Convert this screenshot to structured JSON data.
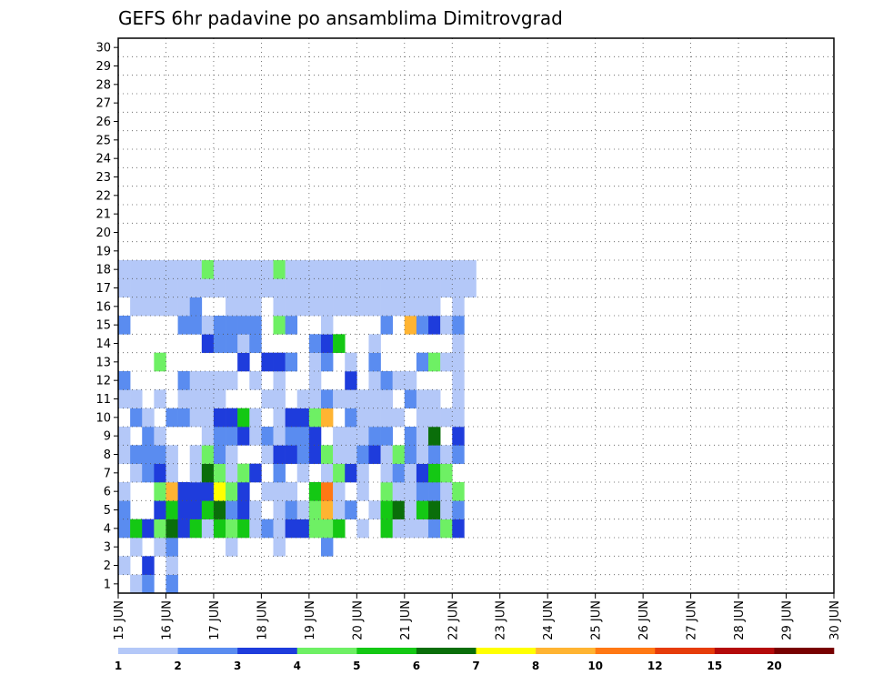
{
  "chart_data": {
    "type": "heatmap",
    "title": "GEFS 6hr padavine po ansamblima Dimitrovgrad",
    "xlabel": "",
    "ylabel": "",
    "x_ticks": [
      "15 JUN",
      "16 JUN",
      "17 JUN",
      "18 JUN",
      "19 JUN",
      "20 JUN",
      "21 JUN",
      "22 JUN",
      "23 JUN",
      "24 JUN",
      "25 JUN",
      "26 JUN",
      "27 JUN",
      "28 JUN",
      "29 JUN",
      "30 JUN"
    ],
    "y_ticks": [
      "1",
      "2",
      "3",
      "4",
      "5",
      "6",
      "7",
      "8",
      "9",
      "10",
      "11",
      "12",
      "13",
      "14",
      "15",
      "16",
      "17",
      "18",
      "19",
      "20",
      "21",
      "22",
      "23",
      "24",
      "25",
      "26",
      "27",
      "28",
      "29",
      "30"
    ],
    "grid": true,
    "color_levels": [
      1,
      2,
      3,
      4,
      5,
      6,
      7,
      8,
      10,
      12,
      15,
      20
    ],
    "level_labels": [
      "1",
      "2",
      "3",
      "4",
      "5",
      "6",
      "7",
      "8",
      "10",
      "12",
      "15",
      "20"
    ],
    "colors": [
      "#b4c8f8",
      "#5a8cf0",
      "#1e3cdc",
      "#6ef064",
      "#14c814",
      "#0a6e0a",
      "#ffff00",
      "#ffb432",
      "#ff7814",
      "#e63c0a",
      "#b40a0a",
      "#780000"
    ],
    "cells": [
      [
        0,
        1,
        1
      ],
      [
        0,
        2,
        2
      ],
      [
        0,
        4,
        2
      ],
      [
        1,
        0,
        1
      ],
      [
        1,
        2,
        3
      ],
      [
        1,
        4,
        1
      ],
      [
        2,
        1,
        1
      ],
      [
        2,
        3,
        1
      ],
      [
        2,
        4,
        2
      ],
      [
        2,
        9,
        1
      ],
      [
        2,
        13,
        1
      ],
      [
        2,
        17,
        2
      ],
      [
        3,
        0,
        2
      ],
      [
        3,
        1,
        5
      ],
      [
        3,
        2,
        3
      ],
      [
        3,
        3,
        4
      ],
      [
        3,
        4,
        6
      ],
      [
        3,
        5,
        3
      ],
      [
        3,
        6,
        5
      ],
      [
        3,
        7,
        1
      ],
      [
        3,
        8,
        5
      ],
      [
        3,
        9,
        4
      ],
      [
        3,
        10,
        5
      ],
      [
        3,
        11,
        1
      ],
      [
        3,
        12,
        2
      ],
      [
        3,
        13,
        1
      ],
      [
        3,
        14,
        3
      ],
      [
        3,
        15,
        3
      ],
      [
        3,
        16,
        4
      ],
      [
        3,
        17,
        4
      ],
      [
        3,
        18,
        5
      ],
      [
        3,
        20,
        1
      ],
      [
        3,
        22,
        5
      ],
      [
        3,
        23,
        1
      ],
      [
        3,
        24,
        1
      ],
      [
        3,
        25,
        1
      ],
      [
        3,
        26,
        2
      ],
      [
        3,
        27,
        4
      ],
      [
        3,
        28,
        3
      ],
      [
        4,
        0,
        2
      ],
      [
        4,
        3,
        3
      ],
      [
        4,
        4,
        5
      ],
      [
        4,
        5,
        3
      ],
      [
        4,
        6,
        3
      ],
      [
        4,
        7,
        5
      ],
      [
        4,
        8,
        6
      ],
      [
        4,
        9,
        2
      ],
      [
        4,
        10,
        3
      ],
      [
        4,
        11,
        1
      ],
      [
        4,
        13,
        1
      ],
      [
        4,
        14,
        2
      ],
      [
        4,
        15,
        1
      ],
      [
        4,
        16,
        4
      ],
      [
        4,
        17,
        8
      ],
      [
        4,
        18,
        1
      ],
      [
        4,
        19,
        2
      ],
      [
        4,
        21,
        1
      ],
      [
        4,
        22,
        5
      ],
      [
        4,
        23,
        6
      ],
      [
        4,
        24,
        1
      ],
      [
        4,
        25,
        5
      ],
      [
        4,
        26,
        6
      ],
      [
        4,
        27,
        1
      ],
      [
        4,
        28,
        2
      ],
      [
        5,
        0,
        1
      ],
      [
        5,
        3,
        4
      ],
      [
        5,
        4,
        8
      ],
      [
        5,
        5,
        3
      ],
      [
        5,
        6,
        3
      ],
      [
        5,
        7,
        3
      ],
      [
        5,
        8,
        7
      ],
      [
        5,
        9,
        4
      ],
      [
        5,
        10,
        3
      ],
      [
        5,
        12,
        1
      ],
      [
        5,
        13,
        1
      ],
      [
        5,
        14,
        1
      ],
      [
        5,
        16,
        5
      ],
      [
        5,
        17,
        9
      ],
      [
        5,
        18,
        1
      ],
      [
        5,
        20,
        1
      ],
      [
        5,
        22,
        4
      ],
      [
        5,
        23,
        1
      ],
      [
        5,
        24,
        1
      ],
      [
        5,
        25,
        2
      ],
      [
        5,
        26,
        2
      ],
      [
        5,
        27,
        1
      ],
      [
        5,
        28,
        4
      ],
      [
        6,
        1,
        1
      ],
      [
        6,
        2,
        2
      ],
      [
        6,
        3,
        3
      ],
      [
        6,
        4,
        1
      ],
      [
        6,
        6,
        1
      ],
      [
        6,
        7,
        6
      ],
      [
        6,
        8,
        4
      ],
      [
        6,
        9,
        1
      ],
      [
        6,
        10,
        4
      ],
      [
        6,
        11,
        3
      ],
      [
        6,
        13,
        2
      ],
      [
        6,
        15,
        1
      ],
      [
        6,
        17,
        1
      ],
      [
        6,
        18,
        4
      ],
      [
        6,
        19,
        3
      ],
      [
        6,
        20,
        1
      ],
      [
        6,
        22,
        1
      ],
      [
        6,
        23,
        2
      ],
      [
        6,
        24,
        1
      ],
      [
        6,
        25,
        3
      ],
      [
        6,
        26,
        5
      ],
      [
        6,
        27,
        4
      ],
      [
        7,
        0,
        1
      ],
      [
        7,
        1,
        2
      ],
      [
        7,
        2,
        2
      ],
      [
        7,
        3,
        2
      ],
      [
        7,
        4,
        1
      ],
      [
        7,
        6,
        1
      ],
      [
        7,
        7,
        4
      ],
      [
        7,
        8,
        2
      ],
      [
        7,
        9,
        1
      ],
      [
        7,
        12,
        1
      ],
      [
        7,
        13,
        3
      ],
      [
        7,
        14,
        3
      ],
      [
        7,
        15,
        2
      ],
      [
        7,
        16,
        3
      ],
      [
        7,
        17,
        4
      ],
      [
        7,
        18,
        1
      ],
      [
        7,
        19,
        1
      ],
      [
        7,
        20,
        2
      ],
      [
        7,
        21,
        3
      ],
      [
        7,
        22,
        1
      ],
      [
        7,
        23,
        4
      ],
      [
        7,
        24,
        2
      ],
      [
        7,
        25,
        1
      ],
      [
        7,
        26,
        2
      ],
      [
        7,
        27,
        1
      ],
      [
        7,
        28,
        2
      ],
      [
        8,
        0,
        1
      ],
      [
        8,
        2,
        2
      ],
      [
        8,
        3,
        1
      ],
      [
        8,
        7,
        1
      ],
      [
        8,
        8,
        2
      ],
      [
        8,
        9,
        2
      ],
      [
        8,
        10,
        3
      ],
      [
        8,
        11,
        1
      ],
      [
        8,
        12,
        2
      ],
      [
        8,
        13,
        1
      ],
      [
        8,
        14,
        2
      ],
      [
        8,
        15,
        2
      ],
      [
        8,
        16,
        3
      ],
      [
        8,
        18,
        1
      ],
      [
        8,
        19,
        1
      ],
      [
        8,
        20,
        1
      ],
      [
        8,
        21,
        2
      ],
      [
        8,
        22,
        2
      ],
      [
        8,
        24,
        2
      ],
      [
        8,
        25,
        1
      ],
      [
        8,
        26,
        6
      ],
      [
        8,
        28,
        3
      ],
      [
        9,
        1,
        2
      ],
      [
        9,
        2,
        1
      ],
      [
        9,
        4,
        2
      ],
      [
        9,
        5,
        2
      ],
      [
        9,
        6,
        1
      ],
      [
        9,
        7,
        1
      ],
      [
        9,
        8,
        3
      ],
      [
        9,
        9,
        3
      ],
      [
        9,
        10,
        5
      ],
      [
        9,
        11,
        1
      ],
      [
        9,
        13,
        1
      ],
      [
        9,
        14,
        3
      ],
      [
        9,
        15,
        3
      ],
      [
        9,
        16,
        4
      ],
      [
        9,
        17,
        8
      ],
      [
        9,
        19,
        2
      ],
      [
        9,
        20,
        1
      ],
      [
        9,
        21,
        1
      ],
      [
        9,
        22,
        1
      ],
      [
        9,
        23,
        1
      ],
      [
        9,
        25,
        1
      ],
      [
        9,
        26,
        1
      ],
      [
        9,
        27,
        1
      ],
      [
        9,
        28,
        1
      ],
      [
        10,
        0,
        1
      ],
      [
        10,
        1,
        1
      ],
      [
        10,
        3,
        1
      ],
      [
        10,
        5,
        1
      ],
      [
        10,
        6,
        1
      ],
      [
        10,
        7,
        1
      ],
      [
        10,
        8,
        1
      ],
      [
        10,
        12,
        1
      ],
      [
        10,
        13,
        1
      ],
      [
        10,
        15,
        1
      ],
      [
        10,
        16,
        1
      ],
      [
        10,
        17,
        2
      ],
      [
        10,
        18,
        1
      ],
      [
        10,
        19,
        1
      ],
      [
        10,
        20,
        1
      ],
      [
        10,
        21,
        1
      ],
      [
        10,
        22,
        1
      ],
      [
        10,
        24,
        2
      ],
      [
        10,
        25,
        1
      ],
      [
        10,
        26,
        1
      ],
      [
        10,
        28,
        1
      ],
      [
        11,
        0,
        2
      ],
      [
        11,
        5,
        2
      ],
      [
        11,
        6,
        1
      ],
      [
        11,
        7,
        1
      ],
      [
        11,
        8,
        1
      ],
      [
        11,
        9,
        1
      ],
      [
        11,
        11,
        1
      ],
      [
        11,
        13,
        1
      ],
      [
        11,
        16,
        1
      ],
      [
        11,
        19,
        3
      ],
      [
        11,
        21,
        1
      ],
      [
        11,
        22,
        2
      ],
      [
        11,
        23,
        1
      ],
      [
        11,
        24,
        1
      ],
      [
        11,
        28,
        1
      ],
      [
        12,
        3,
        4
      ],
      [
        12,
        10,
        3
      ],
      [
        12,
        12,
        3
      ],
      [
        12,
        13,
        3
      ],
      [
        12,
        14,
        2
      ],
      [
        12,
        16,
        1
      ],
      [
        12,
        17,
        2
      ],
      [
        12,
        19,
        1
      ],
      [
        12,
        21,
        2
      ],
      [
        12,
        25,
        2
      ],
      [
        12,
        26,
        4
      ],
      [
        12,
        27,
        1
      ],
      [
        12,
        28,
        1
      ],
      [
        13,
        7,
        3
      ],
      [
        13,
        8,
        2
      ],
      [
        13,
        9,
        2
      ],
      [
        13,
        10,
        1
      ],
      [
        13,
        11,
        2
      ],
      [
        13,
        16,
        2
      ],
      [
        13,
        17,
        3
      ],
      [
        13,
        18,
        5
      ],
      [
        13,
        21,
        1
      ],
      [
        13,
        28,
        1
      ],
      [
        14,
        0,
        2
      ],
      [
        14,
        5,
        2
      ],
      [
        14,
        6,
        2
      ],
      [
        14,
        7,
        1
      ],
      [
        14,
        8,
        2
      ],
      [
        14,
        9,
        2
      ],
      [
        14,
        10,
        2
      ],
      [
        14,
        11,
        2
      ],
      [
        14,
        13,
        4
      ],
      [
        14,
        14,
        2
      ],
      [
        14,
        17,
        1
      ],
      [
        14,
        22,
        2
      ],
      [
        14,
        24,
        8
      ],
      [
        14,
        25,
        2
      ],
      [
        14,
        26,
        3
      ],
      [
        14,
        27,
        1
      ],
      [
        14,
        28,
        2
      ],
      [
        15,
        1,
        1
      ],
      [
        15,
        2,
        1
      ],
      [
        15,
        3,
        1
      ],
      [
        15,
        4,
        1
      ],
      [
        15,
        5,
        1
      ],
      [
        15,
        6,
        2
      ],
      [
        15,
        9,
        1
      ],
      [
        15,
        10,
        1
      ],
      [
        15,
        11,
        1
      ],
      [
        15,
        13,
        1
      ],
      [
        15,
        14,
        1
      ],
      [
        15,
        15,
        1
      ],
      [
        15,
        16,
        1
      ],
      [
        15,
        17,
        1
      ],
      [
        15,
        18,
        1
      ],
      [
        15,
        19,
        1
      ],
      [
        15,
        20,
        1
      ],
      [
        15,
        21,
        1
      ],
      [
        15,
        22,
        1
      ],
      [
        15,
        23,
        1
      ],
      [
        15,
        24,
        1
      ],
      [
        15,
        25,
        1
      ],
      [
        15,
        26,
        1
      ],
      [
        15,
        28,
        1
      ],
      [
        16,
        0,
        1
      ],
      [
        16,
        1,
        1
      ],
      [
        16,
        2,
        1
      ],
      [
        16,
        3,
        1
      ],
      [
        16,
        4,
        1
      ],
      [
        16,
        5,
        1
      ],
      [
        16,
        6,
        1
      ],
      [
        16,
        7,
        1
      ],
      [
        16,
        8,
        1
      ],
      [
        16,
        9,
        1
      ],
      [
        16,
        10,
        1
      ],
      [
        16,
        11,
        1
      ],
      [
        16,
        12,
        1
      ],
      [
        16,
        13,
        1
      ],
      [
        16,
        14,
        1
      ],
      [
        16,
        15,
        1
      ],
      [
        16,
        16,
        1
      ],
      [
        16,
        17,
        1
      ],
      [
        16,
        18,
        1
      ],
      [
        16,
        19,
        1
      ],
      [
        16,
        20,
        1
      ],
      [
        16,
        21,
        1
      ],
      [
        16,
        22,
        1
      ],
      [
        16,
        23,
        1
      ],
      [
        16,
        24,
        1
      ],
      [
        16,
        25,
        1
      ],
      [
        16,
        26,
        1
      ],
      [
        16,
        27,
        1
      ],
      [
        16,
        28,
        1
      ],
      [
        16,
        29,
        1
      ],
      [
        17,
        0,
        1
      ],
      [
        17,
        1,
        1
      ],
      [
        17,
        2,
        1
      ],
      [
        17,
        3,
        1
      ],
      [
        17,
        4,
        1
      ],
      [
        17,
        5,
        1
      ],
      [
        17,
        6,
        1
      ],
      [
        17,
        7,
        4
      ],
      [
        17,
        8,
        1
      ],
      [
        17,
        9,
        1
      ],
      [
        17,
        10,
        1
      ],
      [
        17,
        11,
        1
      ],
      [
        17,
        12,
        1
      ],
      [
        17,
        13,
        4
      ],
      [
        17,
        14,
        1
      ],
      [
        17,
        15,
        1
      ],
      [
        17,
        16,
        1
      ],
      [
        17,
        17,
        1
      ],
      [
        17,
        18,
        1
      ],
      [
        17,
        19,
        1
      ],
      [
        17,
        20,
        1
      ],
      [
        17,
        21,
        1
      ],
      [
        17,
        22,
        1
      ],
      [
        17,
        23,
        1
      ],
      [
        17,
        24,
        1
      ],
      [
        17,
        25,
        1
      ],
      [
        17,
        26,
        1
      ],
      [
        17,
        27,
        1
      ],
      [
        17,
        28,
        1
      ],
      [
        17,
        29,
        1
      ]
    ]
  },
  "title": "GEFS 6hr padavine po ansamblima Dimitrovgrad"
}
